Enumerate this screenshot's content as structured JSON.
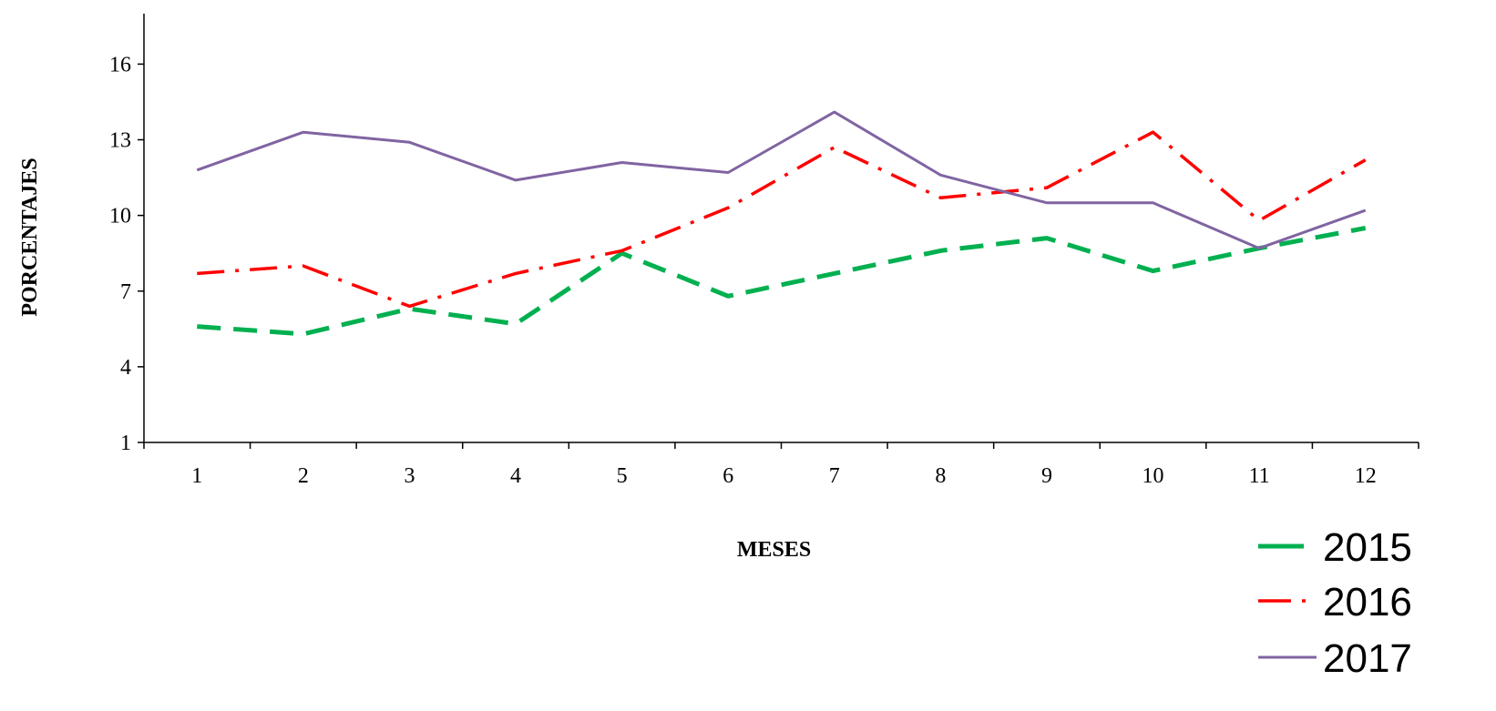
{
  "chart_data": {
    "type": "line",
    "title": "",
    "xlabel": "MESES",
    "ylabel": "PORCENTAJES",
    "x": [
      1,
      2,
      3,
      4,
      5,
      6,
      7,
      8,
      9,
      10,
      11,
      12
    ],
    "ylim": [
      1,
      18
    ],
    "yticks": [
      1,
      4,
      7,
      10,
      13,
      16
    ],
    "grid": false,
    "legend_position": "bottom-right",
    "series": [
      {
        "name": "2015",
        "color": "#00B050",
        "style": "dashed",
        "values": [
          5.6,
          5.3,
          6.3,
          5.7,
          8.5,
          6.8,
          7.7,
          8.6,
          9.1,
          7.8,
          8.7,
          9.5
        ]
      },
      {
        "name": "2016",
        "color": "#FF0000",
        "style": "dash-dot",
        "values": [
          7.7,
          8.0,
          6.4,
          7.7,
          8.6,
          10.3,
          12.7,
          10.7,
          11.1,
          13.3,
          9.8,
          12.2
        ]
      },
      {
        "name": "2017",
        "color": "#8064A2",
        "style": "solid",
        "values": [
          11.8,
          13.3,
          12.9,
          11.4,
          12.1,
          11.7,
          14.1,
          11.6,
          10.5,
          10.5,
          8.7,
          10.2
        ]
      }
    ]
  }
}
